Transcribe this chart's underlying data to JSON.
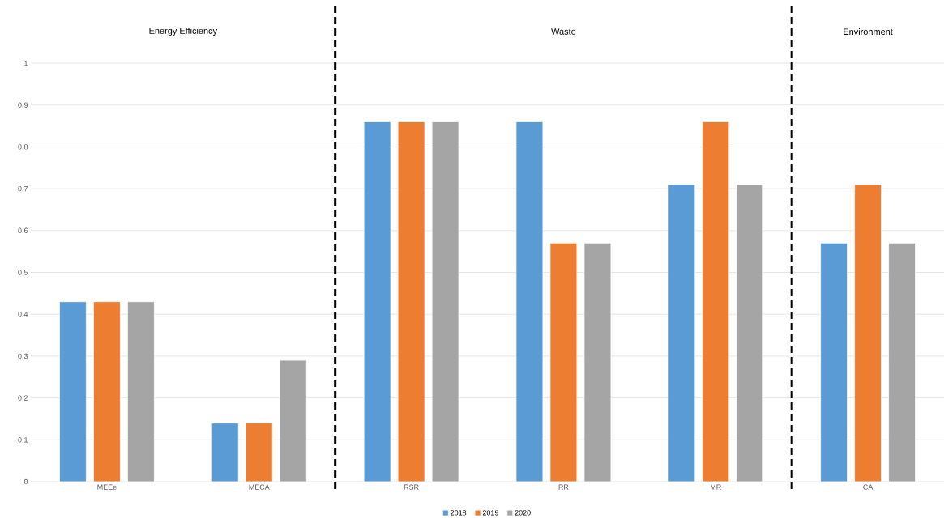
{
  "chart_data": {
    "type": "bar",
    "categories": [
      "MEEe",
      "MECA",
      "RSR",
      "RR",
      "MR",
      "CA"
    ],
    "series": [
      {
        "name": "2018",
        "color": "#5b9bd5",
        "values": [
          0.43,
          0.14,
          0.86,
          0.86,
          0.71,
          0.57
        ]
      },
      {
        "name": "2019",
        "color": "#ed7d31",
        "values": [
          0.43,
          0.14,
          0.86,
          0.57,
          0.86,
          0.71
        ]
      },
      {
        "name": "2020",
        "color": "#a5a5a5",
        "values": [
          0.43,
          0.29,
          0.86,
          0.57,
          0.71,
          0.57
        ]
      }
    ],
    "ylim": [
      0,
      1
    ],
    "yticks": [
      0,
      0.1,
      0.2,
      0.3,
      0.4,
      0.5,
      0.6,
      0.7,
      0.8,
      0.9,
      1
    ],
    "grid": "y",
    "legend": "bottom",
    "annotations": [
      "Energy Efficiency",
      "Waste",
      "Environment"
    ]
  }
}
